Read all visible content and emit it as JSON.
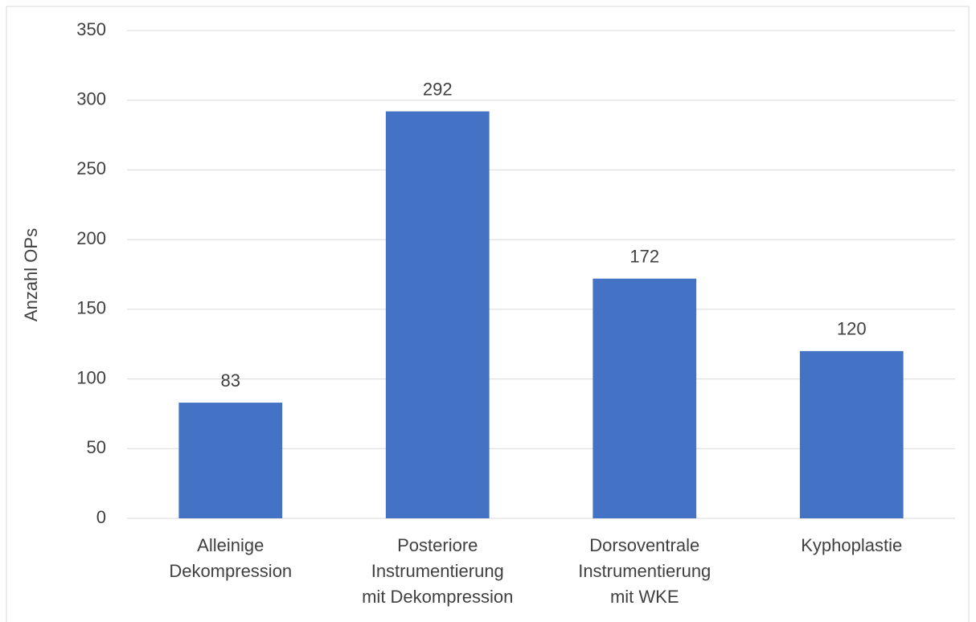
{
  "chart_data": {
    "type": "bar",
    "y_label": "Anzahl OPs",
    "categories": [
      [
        "Alleinige",
        "Dekompression"
      ],
      [
        "Posteriore",
        "Instrumentierung",
        "mit Dekompression"
      ],
      [
        "Dorsoventrale",
        "Instrumentierung",
        "mit WKE"
      ],
      [
        "Kyphoplastie"
      ]
    ],
    "values": [
      83,
      292,
      172,
      120
    ],
    "color": "#4472c4",
    "ylim": [
      0,
      350
    ],
    "yticks": [
      0,
      50,
      100,
      150,
      200,
      250,
      300,
      350
    ],
    "grid": true
  }
}
